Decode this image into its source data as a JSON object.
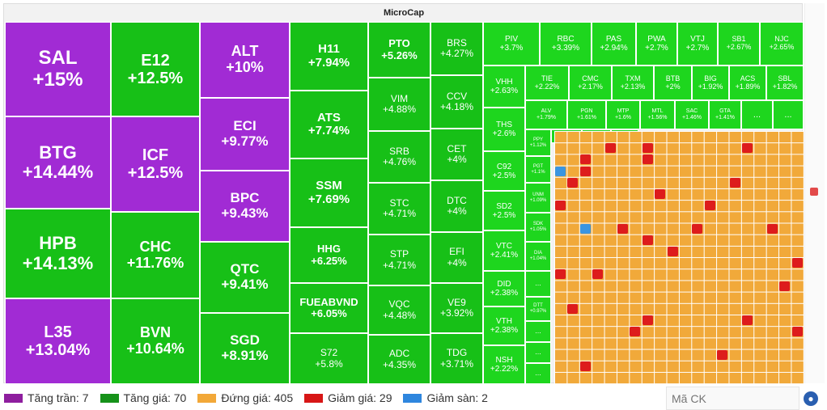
{
  "title": "MicroCap",
  "cells": [
    {
      "ticker": "SAL",
      "pct": "+15%"
    },
    {
      "ticker": "BTG",
      "pct": "+14.44%"
    },
    {
      "ticker": "HPB",
      "pct": "+14.13%"
    },
    {
      "ticker": "L35",
      "pct": "+13.04%"
    },
    {
      "ticker": "E12",
      "pct": "+12.5%"
    },
    {
      "ticker": "ICF",
      "pct": "+12.5%"
    },
    {
      "ticker": "CHC",
      "pct": "+11.76%"
    },
    {
      "ticker": "BVN",
      "pct": "+10.64%"
    },
    {
      "ticker": "ALT",
      "pct": "+10%"
    },
    {
      "ticker": "ECI",
      "pct": "+9.77%"
    },
    {
      "ticker": "BPC",
      "pct": "+9.43%"
    },
    {
      "ticker": "QTC",
      "pct": "+9.41%"
    },
    {
      "ticker": "SGD",
      "pct": "+8.91%"
    },
    {
      "ticker": "H11",
      "pct": "+7.94%"
    },
    {
      "ticker": "ATS",
      "pct": "+7.74%"
    },
    {
      "ticker": "SSM",
      "pct": "+7.69%"
    },
    {
      "ticker": "HHG",
      "pct": "+6.25%"
    },
    {
      "ticker": "FUEABVND",
      "pct": "+6.05%"
    },
    {
      "ticker": "S72",
      "pct": "+5.8%"
    },
    {
      "ticker": "PTO",
      "pct": "+5.26%"
    },
    {
      "ticker": "VIM",
      "pct": "+4.88%"
    },
    {
      "ticker": "SRB",
      "pct": "+4.76%"
    },
    {
      "ticker": "STC",
      "pct": "+4.71%"
    },
    {
      "ticker": "STP",
      "pct": "+4.71%"
    },
    {
      "ticker": "VQC",
      "pct": "+4.48%"
    },
    {
      "ticker": "ADC",
      "pct": "+4.35%"
    },
    {
      "ticker": "BRS",
      "pct": "+4.27%"
    },
    {
      "ticker": "CCV",
      "pct": "+4.18%"
    },
    {
      "ticker": "CET",
      "pct": "+4%"
    },
    {
      "ticker": "DTC",
      "pct": "+4%"
    },
    {
      "ticker": "EFI",
      "pct": "+4%"
    },
    {
      "ticker": "VE9",
      "pct": "+3.92%"
    },
    {
      "ticker": "TDG",
      "pct": "+3.71%"
    },
    {
      "ticker": "PIV",
      "pct": "+3.7%"
    },
    {
      "ticker": "RBC",
      "pct": "+3.39%"
    },
    {
      "ticker": "PAS",
      "pct": "+2.94%"
    },
    {
      "ticker": "PWA",
      "pct": "+2.7%"
    },
    {
      "ticker": "VTJ",
      "pct": "+2.7%"
    },
    {
      "ticker": "SB1",
      "pct": "+2.67%"
    },
    {
      "ticker": "NJC",
      "pct": "+2.65%"
    },
    {
      "ticker": "VHH",
      "pct": "+2.63%"
    },
    {
      "ticker": "TIE",
      "pct": "+2.22%"
    },
    {
      "ticker": "CMC",
      "pct": "+2.17%"
    },
    {
      "ticker": "TXM",
      "pct": "+2.13%"
    },
    {
      "ticker": "BTB",
      "pct": "+2%"
    },
    {
      "ticker": "BIG",
      "pct": "+1.92%"
    },
    {
      "ticker": "ACS",
      "pct": "+1.89%"
    },
    {
      "ticker": "SBL",
      "pct": "+1.82%"
    },
    {
      "ticker": "ALV",
      "pct": "+1.79%"
    },
    {
      "ticker": "PGN",
      "pct": "+1.61%"
    },
    {
      "ticker": "MTP",
      "pct": "+1.6%"
    },
    {
      "ticker": "MTL",
      "pct": "+1.56%"
    },
    {
      "ticker": "SAC",
      "pct": "+1.46%"
    },
    {
      "ticker": "GTA",
      "pct": "+1.41%"
    },
    {
      "ticker": "THS",
      "pct": "+2.6%"
    },
    {
      "ticker": "C92",
      "pct": "+2.5%"
    },
    {
      "ticker": "SD2",
      "pct": "+2.5%"
    },
    {
      "ticker": "VTC",
      "pct": "+2.41%"
    },
    {
      "ticker": "DID",
      "pct": "+2.38%"
    },
    {
      "ticker": "VTH",
      "pct": "+2.38%"
    },
    {
      "ticker": "NSH",
      "pct": "+2.22%"
    },
    {
      "ticker": "PPY",
      "pct": "+1.12%"
    },
    {
      "ticker": "PGT",
      "pct": "+1.1%"
    },
    {
      "ticker": "UNM",
      "pct": "+1.09%"
    },
    {
      "ticker": "SDK",
      "pct": "+1.05%"
    },
    {
      "ticker": "DIA",
      "pct": "+1.04%"
    },
    {
      "ticker": "DTT",
      "pct": "+0.97%"
    }
  ],
  "more_label": "...",
  "legend": [
    {
      "label": "Tăng trần: 7",
      "color": "#8e1e9e"
    },
    {
      "label": "Tăng giá: 70",
      "color": "#16921a"
    },
    {
      "label": "Đứng giá: 405",
      "color": "#f2a838"
    },
    {
      "label": "Giảm giá: 29",
      "color": "#d71616"
    },
    {
      "label": "Giảm sàn: 2",
      "color": "#2e86de"
    }
  ],
  "search": {
    "placeholder": "Mã CK"
  },
  "colors": {
    "ceiling": "#a12bd4",
    "up": "#17c017",
    "flat": "#f1a93a",
    "down": "#dd1c1c",
    "floor": "#3b95e0"
  },
  "icons": {
    "globe": "globe-icon",
    "sidebar": "expand-icon"
  }
}
